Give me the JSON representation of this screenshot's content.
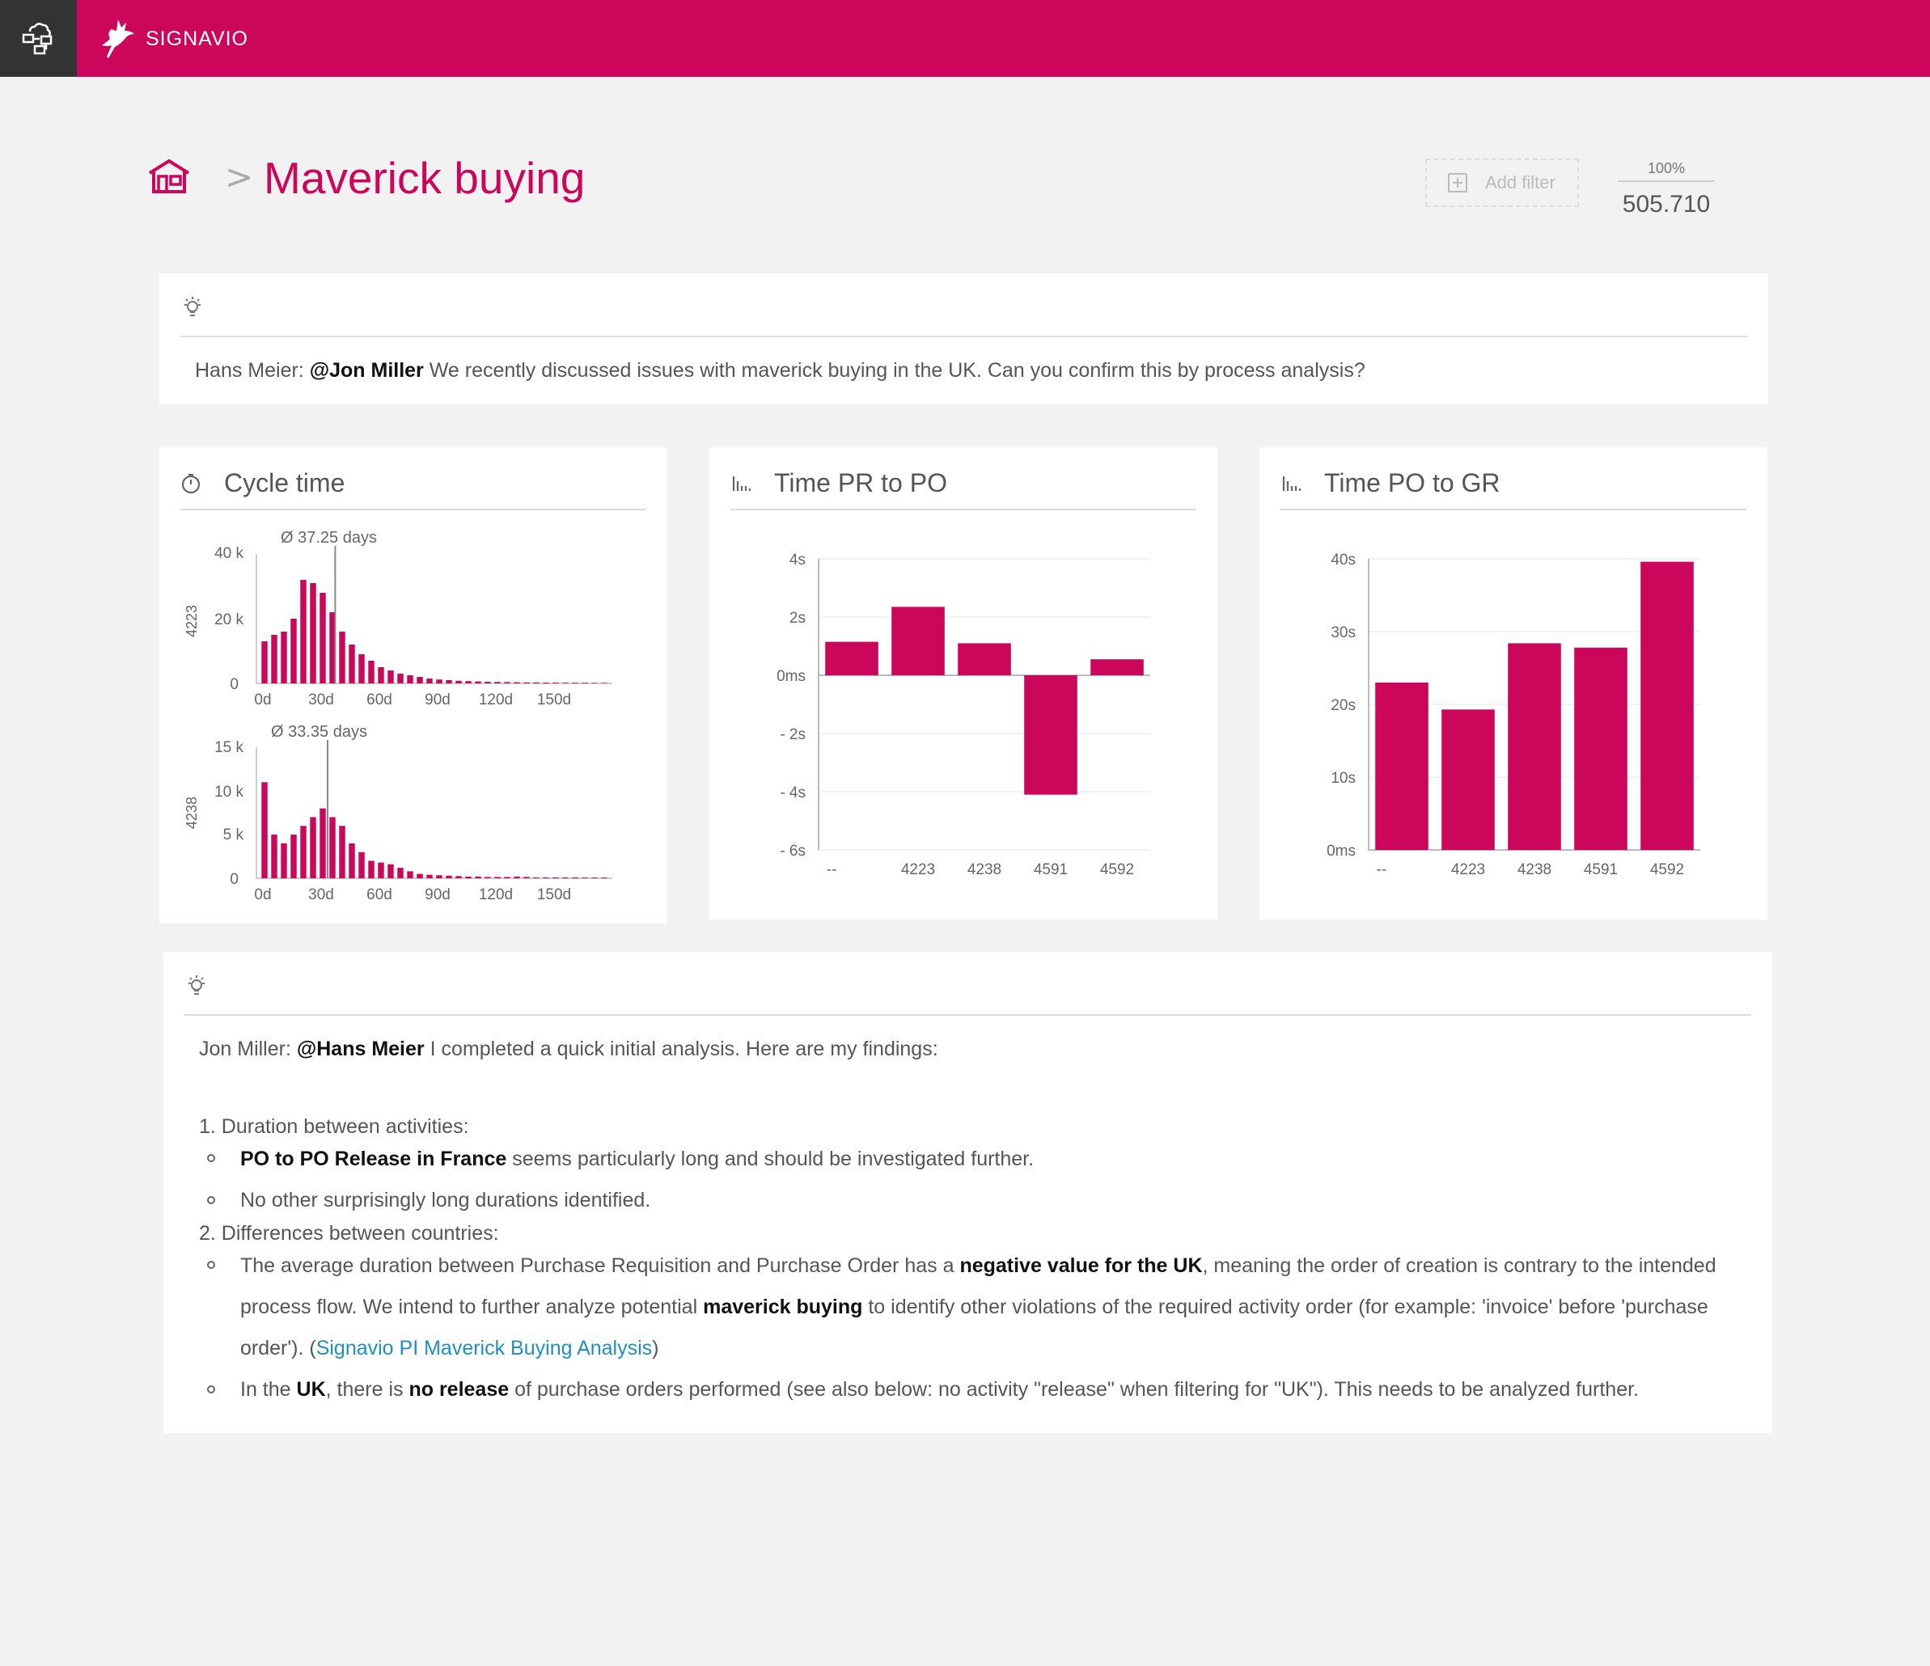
{
  "brand": {
    "name": "SIGNAVIO",
    "accent": "#cc075b"
  },
  "header": {
    "breadcrumb_sep": ">",
    "title": "Maverick buying",
    "add_filter": "Add filter",
    "count_pct": "100%",
    "count_value": "505.710"
  },
  "note1": {
    "author": "Hans Meier:",
    "mention": "@Jon Miller",
    "text": "We recently discussed issues with maverick buying in the UK. Can you confirm this by process analysis?"
  },
  "cycle_time": {
    "title": "Cycle time",
    "top": {
      "avg": "Ø 37.25 days",
      "row_label": "4223",
      "yticks": [
        "40 k",
        "20 k",
        "0"
      ],
      "xticks": [
        "0d",
        "30d",
        "60d",
        "90d",
        "120d",
        "150d"
      ]
    },
    "bottom": {
      "avg": "Ø 33.35 days",
      "row_label": "4238",
      "yticks": [
        "15 k",
        "10 k",
        "5 k",
        "0"
      ],
      "xticks": [
        "0d",
        "30d",
        "60d",
        "90d",
        "120d",
        "150d"
      ]
    }
  },
  "chart_data": [
    {
      "type": "bar",
      "title": "Cycle time",
      "series_label": "4223",
      "x": [
        0,
        5,
        10,
        15,
        20,
        25,
        30,
        35,
        40,
        45,
        50,
        55,
        60,
        65,
        70,
        75,
        80,
        85,
        90,
        95,
        100,
        105,
        110,
        115,
        120,
        125,
        130,
        135,
        140,
        145,
        150,
        155,
        160,
        165,
        170,
        175
      ],
      "values": [
        13000,
        15000,
        16000,
        20000,
        32000,
        31000,
        28000,
        22000,
        16000,
        12000,
        9000,
        7000,
        5000,
        4000,
        3000,
        2500,
        2000,
        1500,
        1200,
        1000,
        800,
        700,
        600,
        500,
        450,
        400,
        350,
        300,
        300,
        250,
        250,
        200,
        200,
        200,
        150,
        150
      ],
      "xlabel": "",
      "ylabel": "",
      "ylim": [
        0,
        40000
      ],
      "annotation": "Ø 37.25 days",
      "avg": 37.25
    },
    {
      "type": "bar",
      "title": "Cycle time",
      "series_label": "4238",
      "x": [
        0,
        5,
        10,
        15,
        20,
        25,
        30,
        35,
        40,
        45,
        50,
        55,
        60,
        65,
        70,
        75,
        80,
        85,
        90,
        95,
        100,
        105,
        110,
        115,
        120,
        125,
        130,
        135,
        140,
        145,
        150,
        155,
        160,
        165,
        170,
        175
      ],
      "values": [
        11000,
        5000,
        4000,
        5000,
        6000,
        7000,
        8000,
        7000,
        6000,
        4000,
        3000,
        2000,
        1800,
        1600,
        1200,
        800,
        500,
        400,
        350,
        300,
        250,
        200,
        200,
        150,
        150,
        150,
        200,
        150,
        100,
        100,
        100,
        100,
        100,
        80,
        80,
        80
      ],
      "xlabel": "",
      "ylabel": "",
      "ylim": [
        0,
        15000
      ],
      "annotation": "Ø 33.35 days",
      "avg": 33.35
    },
    {
      "type": "bar",
      "title": "Time PR to PO",
      "categories": [
        "--",
        "4223",
        "4238",
        "4591",
        "4592"
      ],
      "values": [
        1.15,
        2.35,
        1.1,
        -4.1,
        0.55
      ],
      "unit": "s",
      "yticks": [
        "4s",
        "2s",
        "0ms",
        "- 2s",
        "- 4s",
        "- 6s"
      ],
      "ylim": [
        -6,
        4
      ]
    },
    {
      "type": "bar",
      "title": "Time PO to GR",
      "categories": [
        "--",
        "4223",
        "4238",
        "4591",
        "4592"
      ],
      "values": [
        23,
        19.3,
        28.4,
        27.8,
        39.6
      ],
      "unit": "s",
      "yticks": [
        "40s",
        "30s",
        "20s",
        "10s",
        "0ms"
      ],
      "ylim": [
        0,
        40
      ]
    }
  ],
  "note2": {
    "author": "Jon Miller:",
    "mention": "@Hans Meier",
    "text": "I completed a quick initial analysis. Here are my findings:",
    "item1": "1. Duration between activities:",
    "item1_sub1_bold": "PO to PO Release in France",
    "item1_sub1_rest": "seems particularly long and should be investigated further.",
    "item1_sub2": "No other surprisingly long durations identified.",
    "item2": "2. Differences between countries:",
    "item2_sub1_a": "The average duration between Purchase Requisition and Purchase Order has a",
    "item2_sub1_bold": "negative value for the UK",
    "item2_sub1_b": ", meaning the order of creation is contrary to the intended",
    "item2_sub1_c": "process flow. We intend to further analyze potential",
    "item2_sub1_bold2": "maverick buying",
    "item2_sub1_d": "to identify other violations of the required activity order (for example: 'invoice' before 'purchase",
    "item2_sub1_e": "order'). (",
    "item2_sub1_link": "Signavio PI Maverick Buying Analysis",
    "item2_sub1_f": ")",
    "item2_sub2_a": "In the",
    "item2_sub2_bold": "UK",
    "item2_sub2_b": ", there is",
    "item2_sub2_bold2": "no release",
    "item2_sub2_c": "of purchase orders performed (see also below: no activity \"release\" when filtering for \"UK\").  This needs to be analyzed further."
  }
}
